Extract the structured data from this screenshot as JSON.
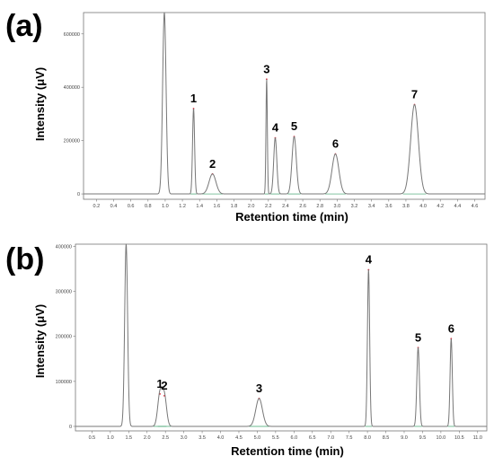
{
  "chart_data": [
    {
      "type": "line",
      "panel": "(a)",
      "xlabel": "Retention time (min)",
      "ylabel": "Intensity (μV)",
      "xlim": [
        0.05,
        4.72
      ],
      "ylim": [
        -20000,
        680000
      ],
      "x_ticks": [
        0.2,
        0.4,
        0.6,
        0.8,
        1.0,
        1.2,
        1.4,
        1.6,
        1.8,
        2.0,
        2.2,
        2.4,
        2.6,
        2.8,
        3.0,
        3.2,
        3.4,
        3.6,
        3.8,
        4.0,
        4.2,
        4.4,
        4.6
      ],
      "x_tick_labels": [
        "0.2",
        "0.4",
        "0.6",
        "0.8",
        "1.0",
        "1.2",
        "1.4",
        "1.6",
        "1.8",
        "2.0",
        "2.2",
        "2.4",
        "2.6",
        "2.8",
        "3.0",
        "3.2",
        "3.4",
        "3.6",
        "3.8",
        "4.0",
        "4.2",
        "4.4",
        "4.6"
      ],
      "y_ticks": [
        0,
        200000,
        400000,
        600000
      ],
      "y_tick_labels": [
        "0",
        "200000",
        "400000",
        "600000"
      ],
      "solvent_front": {
        "x": 0.99,
        "height": 680000,
        "width": 0.02
      },
      "peaks": [
        {
          "label": "1",
          "x": 1.33,
          "height": 320000,
          "width": 0.012
        },
        {
          "label": "2",
          "x": 1.55,
          "height": 75000,
          "width": 0.04
        },
        {
          "label": "3",
          "x": 2.18,
          "height": 430000,
          "width": 0.008
        },
        {
          "label": "4",
          "x": 2.28,
          "height": 210000,
          "width": 0.018
        },
        {
          "label": "5",
          "x": 2.5,
          "height": 215000,
          "width": 0.025
        },
        {
          "label": "6",
          "x": 2.98,
          "height": 150000,
          "width": 0.04
        },
        {
          "label": "7",
          "x": 3.9,
          "height": 335000,
          "width": 0.045
        }
      ]
    },
    {
      "type": "line",
      "panel": "(b)",
      "xlabel": "Retention time (min)",
      "ylabel": "Intensity (μV)",
      "xlim": [
        0.05,
        11.25
      ],
      "ylim": [
        -10000,
        405000
      ],
      "x_ticks": [
        0.5,
        1.0,
        1.5,
        2.0,
        2.5,
        3.0,
        3.5,
        4.0,
        4.5,
        5.0,
        5.5,
        6.0,
        6.5,
        7.0,
        7.5,
        8.0,
        8.5,
        9.0,
        9.5,
        10.0,
        10.5,
        11.0
      ],
      "x_tick_labels": [
        "0.5",
        "1.0",
        "1.5",
        "2.0",
        "2.5",
        "3.0",
        "3.5",
        "4.0",
        "4.5",
        "5.0",
        "5.5",
        "6.0",
        "6.5",
        "7.0",
        "7.5",
        "8.0",
        "8.5",
        "9.0",
        "9.5",
        "10.0",
        "10.5",
        "11.0"
      ],
      "y_ticks": [
        0,
        100000,
        200000,
        300000,
        400000
      ],
      "y_tick_labels": [
        "0",
        "100000",
        "200000",
        "300000",
        "400000"
      ],
      "solvent_front": {
        "x": 1.43,
        "height": 405000,
        "width": 0.04
      },
      "peaks": [
        {
          "label": "1",
          "x": 2.35,
          "height": 72000,
          "width": 0.06
        },
        {
          "label": "2",
          "x": 2.47,
          "height": 68000,
          "width": 0.06
        },
        {
          "label": "3",
          "x": 5.05,
          "height": 62000,
          "width": 0.09
        },
        {
          "label": "4",
          "x": 8.03,
          "height": 348000,
          "width": 0.03
        },
        {
          "label": "5",
          "x": 9.38,
          "height": 175000,
          "width": 0.035
        },
        {
          "label": "6",
          "x": 10.28,
          "height": 195000,
          "width": 0.03
        }
      ]
    }
  ]
}
